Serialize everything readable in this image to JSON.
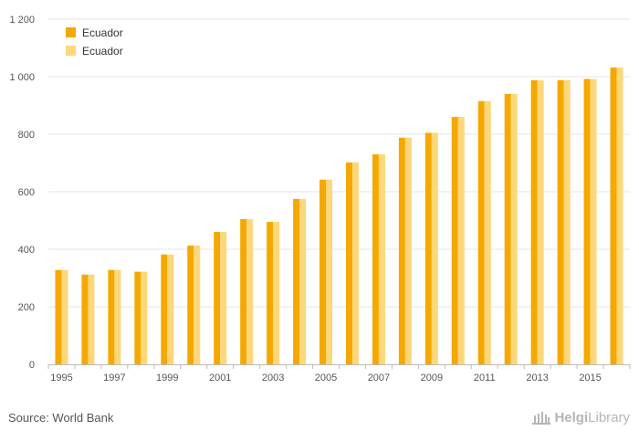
{
  "chart_data": {
    "type": "bar",
    "categories": [
      "1995",
      "1996",
      "1997",
      "1998",
      "1999",
      "2000",
      "2001",
      "2002",
      "2003",
      "2004",
      "2005",
      "2006",
      "2007",
      "2008",
      "2009",
      "2010",
      "2011",
      "2012",
      "2013",
      "2014",
      "2015",
      "2016"
    ],
    "x_tick_labels": [
      "1995",
      "1997",
      "1999",
      "2001",
      "2003",
      "2005",
      "2007",
      "2009",
      "2011",
      "2013",
      "2015"
    ],
    "series": [
      {
        "name": "Ecuador",
        "color": "#F5A800",
        "values": [
          328,
          312,
          328,
          322,
          382,
          413,
          460,
          505,
          495,
          575,
          642,
          702,
          730,
          788,
          805,
          860,
          915,
          940,
          988,
          988,
          992,
          1032
        ]
      },
      {
        "name": "Ecuador",
        "color": "#FDD77A",
        "values": [
          328,
          312,
          328,
          322,
          382,
          413,
          460,
          505,
          495,
          575,
          642,
          702,
          730,
          788,
          805,
          860,
          915,
          940,
          988,
          988,
          992,
          1032
        ]
      }
    ],
    "ylim": [
      0,
      1200
    ],
    "y_ticks": [
      0,
      200,
      400,
      600,
      800,
      1000,
      1200
    ],
    "y_tick_labels": [
      "0",
      "200",
      "400",
      "600",
      "800",
      "1 000",
      "1 200"
    ],
    "grid": true,
    "legend_position": "top-left",
    "title": "",
    "xlabel": "",
    "ylabel": ""
  },
  "footer": {
    "source": "Source: World Bank",
    "logo_bold": "Helgi",
    "logo_rest": "Library"
  },
  "logo_icon": "building-icon"
}
